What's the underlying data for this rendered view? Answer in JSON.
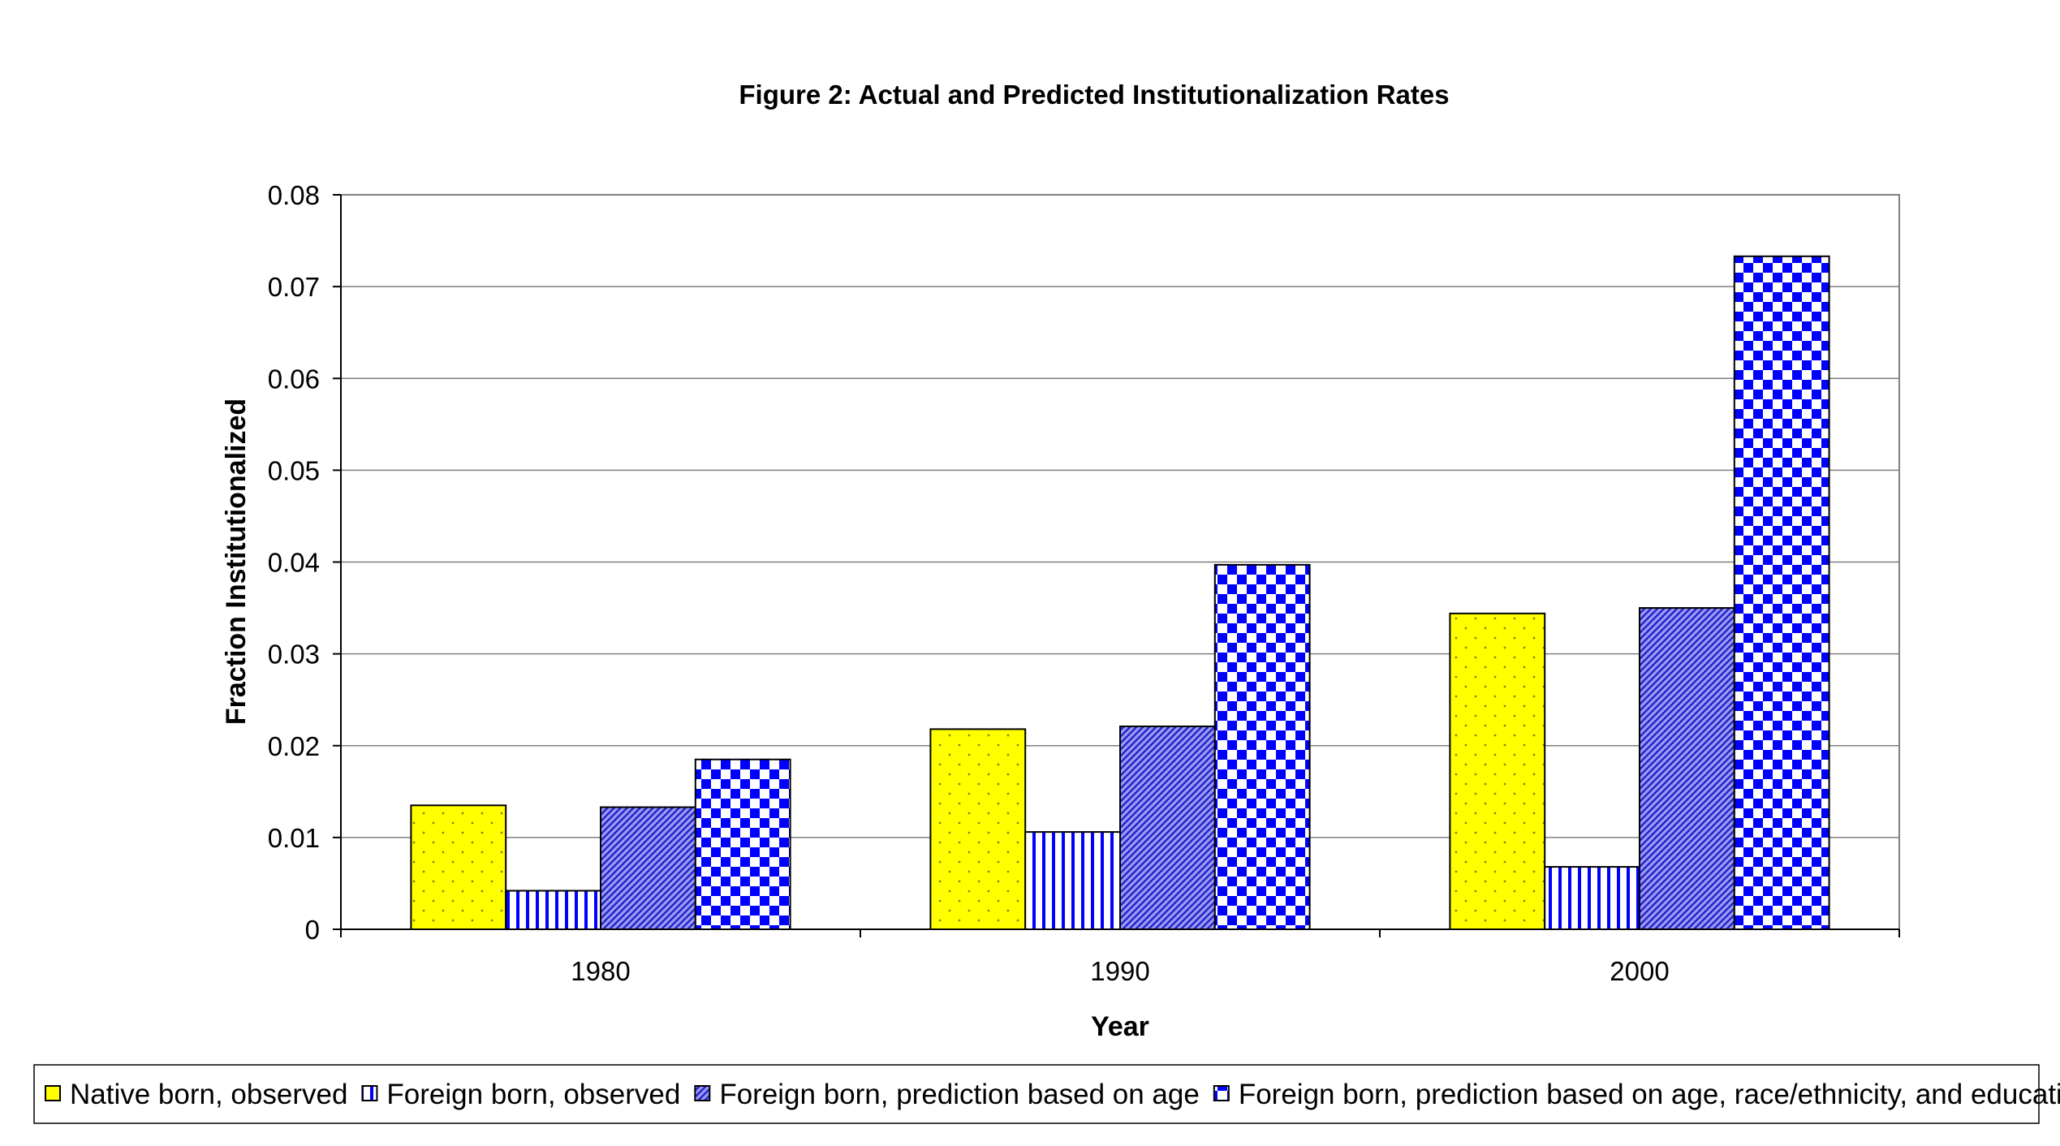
{
  "chart_data": {
    "type": "bar",
    "title": "Figure 2: Actual and Predicted Institutionalization Rates",
    "xlabel": "Year",
    "ylabel": "Fraction Institutionalized",
    "categories": [
      "1980",
      "1990",
      "2000"
    ],
    "ylim": [
      0,
      0.08
    ],
    "yticks": [
      "0",
      "0.01",
      "0.02",
      "0.03",
      "0.04",
      "0.05",
      "0.06",
      "0.07",
      "0.08"
    ],
    "grid": true,
    "legend_position": "bottom",
    "series": [
      {
        "name": "Native born, observed",
        "values": [
          0.0135,
          0.0218,
          0.0344
        ],
        "color": "#ffff00",
        "pattern": "dots"
      },
      {
        "name": "Foreign born, observed",
        "values": [
          0.0042,
          0.0106,
          0.0068
        ],
        "color": "#0000ff",
        "pattern": "vertical-lines"
      },
      {
        "name": "Foreign born, prediction based on age",
        "values": [
          0.0133,
          0.0221,
          0.035
        ],
        "color": "#6b6bf0",
        "pattern": "diagonal-lines"
      },
      {
        "name": "Foreign born, prediction based on age, race/ethnicity, and education",
        "values": [
          0.0185,
          0.0397,
          0.0733
        ],
        "color": "#0000ff",
        "pattern": "checkerboard"
      }
    ]
  }
}
